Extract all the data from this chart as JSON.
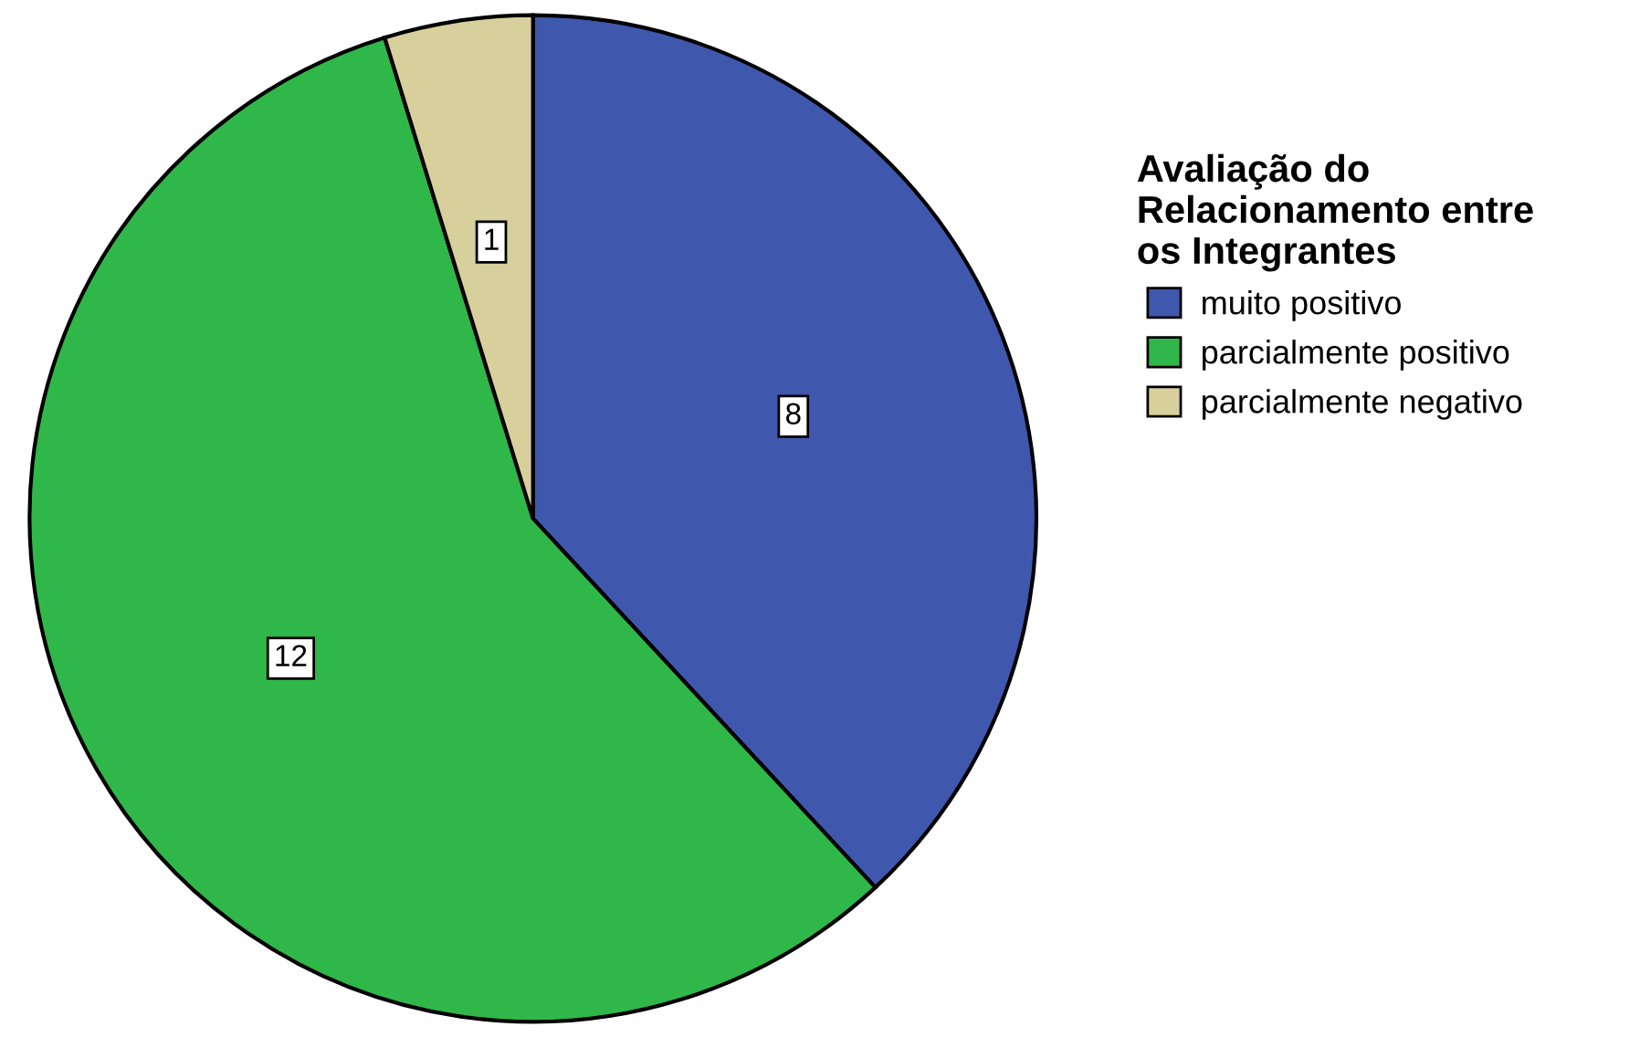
{
  "chart_data": {
    "type": "pie",
    "legend_title": "Avaliação do\nRelacionamento entre\nos Integrantes",
    "categories": [
      "muito positivo",
      "parcialmente positivo",
      "parcialmente negativo"
    ],
    "values": [
      8,
      12,
      1
    ],
    "colors": [
      "#3f58ad",
      "#30b749",
      "#d7d09c"
    ],
    "data_labels": true,
    "legend": "right"
  }
}
